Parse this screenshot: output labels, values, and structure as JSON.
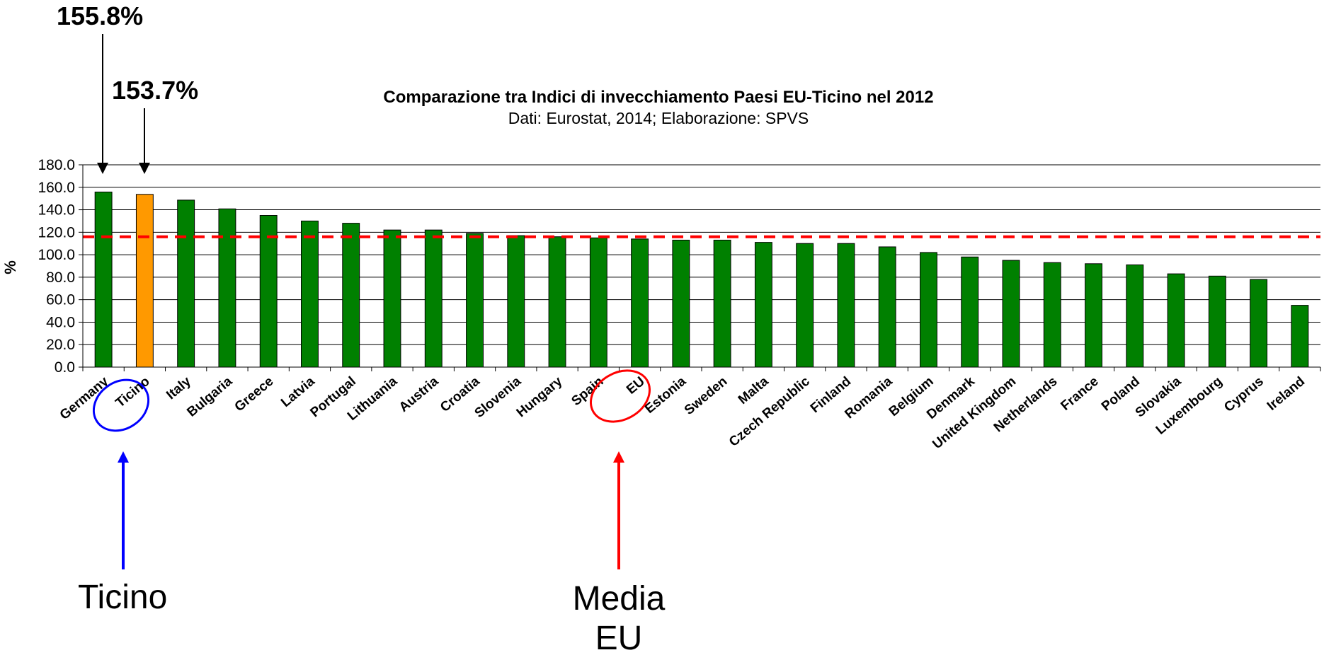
{
  "chart_data": {
    "type": "bar",
    "title": "Comparazione tra Indici di invecchiamento Paesi EU-Ticino nel 2012",
    "subtitle": "Dati: Eurostat, 2014; Elaborazione: SPVS",
    "xlabel": "",
    "ylabel": "%",
    "ylim": [
      0,
      180
    ],
    "yticks": [
      "0.0",
      "20.0",
      "40.0",
      "60.0",
      "80.0",
      "100.0",
      "120.0",
      "140.0",
      "160.0",
      "180.0"
    ],
    "grid": true,
    "categories": [
      "Germany",
      "Ticino",
      "Italy",
      "Bulgaria",
      "Greece",
      "Latvia",
      "Portugal",
      "Lithuania",
      "Austria",
      "Croatia",
      "Slovenia",
      "Hungary",
      "Spain",
      "EU",
      "Estonia",
      "Sweden",
      "Malta",
      "Czech Republic",
      "Finland",
      "Romania",
      "Belgium",
      "Denmark",
      "United Kingdom",
      "Netherlands",
      "France",
      "Poland",
      "Slovakia",
      "Luxembourg",
      "Cyprus",
      "Ireland"
    ],
    "values": [
      155.8,
      153.7,
      148.6,
      140.8,
      135.0,
      130.0,
      128.0,
      122.0,
      122.0,
      119.0,
      117.0,
      116.0,
      115.0,
      114.0,
      113.0,
      113.0,
      111.0,
      110.0,
      110.0,
      107.0,
      102.0,
      98.0,
      95.0,
      93.0,
      92.0,
      91.0,
      83.0,
      81.0,
      78.0,
      55.0
    ],
    "highlight_category": "Ticino",
    "reference_line": 116.0,
    "colors": {
      "bar": "#008000",
      "highlight": "#FF9900",
      "reference_line": "#FF0000",
      "ticino_marker": "#0000FF",
      "eu_marker": "#FF0000",
      "grid": "#000000"
    }
  },
  "annotations": {
    "germany_value": "155.8%",
    "ticino_value": "153.7%",
    "ticino_label": "Ticino",
    "eu_label_line1": "Media",
    "eu_label_line2": "EU"
  }
}
